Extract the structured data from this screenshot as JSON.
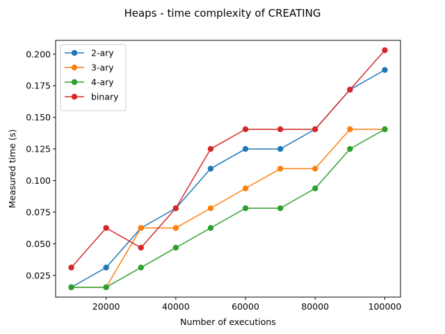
{
  "chart_data": {
    "type": "line",
    "title": "Heaps - time complexity of CREATING",
    "xlabel": "Number of executions",
    "ylabel": "Measured time (s)",
    "x": [
      10000,
      20000,
      30000,
      40000,
      50000,
      60000,
      70000,
      80000,
      90000,
      100000
    ],
    "xlim": [
      5500,
      104500
    ],
    "ylim": [
      0.0078,
      0.2109
    ],
    "xticks": [
      20000,
      40000,
      60000,
      80000,
      100000
    ],
    "xtick_labels": [
      "20000",
      "40000",
      "60000",
      "80000",
      "100000"
    ],
    "yticks": [
      0.025,
      0.05,
      0.075,
      0.1,
      0.125,
      0.15,
      0.175,
      0.2
    ],
    "ytick_labels": [
      "0.025",
      "0.050",
      "0.075",
      "0.100",
      "0.125",
      "0.150",
      "0.175",
      "0.200"
    ],
    "grid": false,
    "legend_position": "top-left",
    "series": [
      {
        "name": "2-ary",
        "color": "#1f77b4",
        "values": [
          0.0156,
          0.0312,
          0.0625,
          0.0781,
          0.1094,
          0.125,
          0.125,
          0.1406,
          0.1719,
          0.1875
        ]
      },
      {
        "name": "3-ary",
        "color": "#ff7f0e",
        "values": [
          0.0156,
          0.0156,
          0.0625,
          0.0625,
          0.0781,
          0.0938,
          0.1094,
          0.1094,
          0.1406,
          0.1406
        ]
      },
      {
        "name": "4-ary",
        "color": "#2ca02c",
        "values": [
          0.0156,
          0.0156,
          0.0312,
          0.0469,
          0.0625,
          0.0781,
          0.0781,
          0.0938,
          0.125,
          0.1406
        ]
      },
      {
        "name": "binary",
        "color": "#d62728",
        "values": [
          0.0312,
          0.0625,
          0.0469,
          0.0781,
          0.125,
          0.1406,
          0.1406,
          0.1406,
          0.1719,
          0.2031
        ]
      }
    ]
  }
}
